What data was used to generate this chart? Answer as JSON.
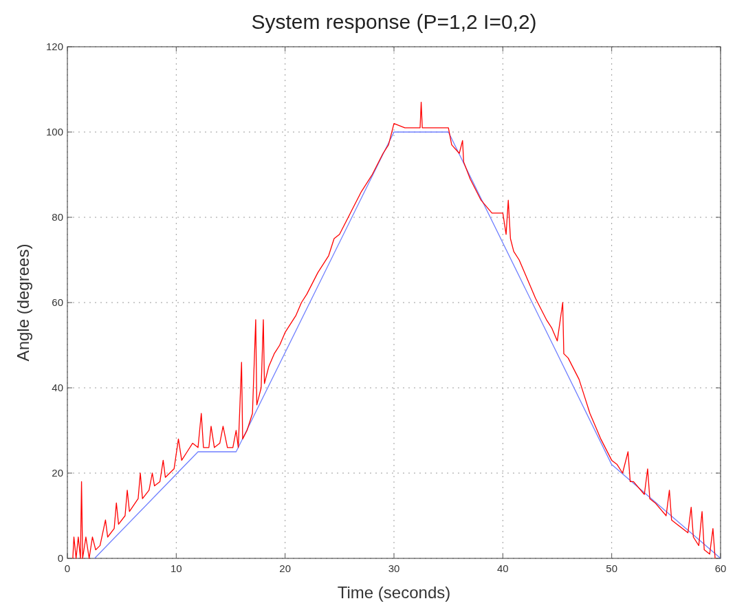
{
  "chart_data": {
    "type": "line",
    "title": "System response (P=1,2 I=0,2)",
    "xlabel": "Time (seconds)",
    "ylabel": "Angle (degrees)",
    "xlim": [
      0,
      60
    ],
    "ylim": [
      0,
      120
    ],
    "xticks": [
      0,
      10,
      20,
      30,
      40,
      50,
      60
    ],
    "yticks": [
      0,
      20,
      40,
      60,
      80,
      100,
      120
    ],
    "grid": true,
    "line_style": "solid",
    "series": [
      {
        "color": "#6f7fff",
        "x": [
          2.5,
          12,
          15.5,
          30,
          35,
          50,
          60
        ],
        "values": [
          0,
          25,
          25,
          100,
          100,
          22,
          0
        ]
      },
      {
        "color": "#ff0000",
        "x": [
          0.5,
          0.6,
          0.8,
          1.0,
          1.2,
          1.3,
          1.4,
          1.7,
          2.0,
          2.3,
          2.6,
          3.0,
          3.5,
          3.7,
          4.3,
          4.5,
          4.7,
          5.3,
          5.5,
          5.7,
          6.5,
          6.7,
          6.9,
          7.5,
          7.8,
          8.0,
          8.5,
          8.8,
          9.0,
          9.8,
          10.2,
          10.5,
          11.0,
          11.5,
          12.0,
          12.3,
          12.5,
          13.0,
          13.2,
          13.5,
          14.0,
          14.3,
          14.7,
          15.2,
          15.5,
          15.7,
          16.0,
          16.1,
          16.5,
          17.0,
          17.3,
          17.4,
          17.8,
          18.0,
          18.1,
          18.5,
          19.0,
          19.5,
          20.0,
          21,
          21.5,
          22,
          23,
          24,
          24.5,
          25,
          26,
          27,
          28,
          29,
          29.5,
          30,
          31,
          32,
          32.4,
          32.5,
          32.6,
          33,
          34,
          35,
          35.3,
          36,
          36.3,
          36.4,
          37,
          38,
          39,
          40,
          40.3,
          40.5,
          40.7,
          41,
          41.5,
          42,
          43,
          44,
          44.5,
          45,
          45.5,
          45.6,
          46,
          47,
          47.5,
          48,
          48.5,
          49,
          50,
          50.5,
          51,
          51.5,
          51.7,
          52,
          53,
          53.3,
          53.5,
          54,
          55,
          55.3,
          55.5,
          56,
          57,
          57.3,
          57.5,
          58,
          58.3,
          58.5,
          59,
          59.3,
          59.5
        ],
        "values": [
          0,
          5,
          0,
          5,
          0,
          18,
          0,
          5,
          0,
          5,
          2,
          3,
          9,
          5,
          7,
          13,
          8,
          10,
          16,
          11,
          14,
          20,
          14,
          16,
          20,
          17,
          18,
          23,
          19,
          21,
          28,
          23,
          25,
          27,
          26,
          34,
          26,
          26,
          31,
          26,
          27,
          31,
          26,
          26,
          30,
          26,
          46,
          28,
          30,
          34,
          56,
          36,
          40,
          56,
          41,
          45,
          48,
          50,
          53,
          57,
          60,
          62,
          67,
          71,
          75,
          76,
          81,
          86,
          90,
          95,
          97,
          102,
          101,
          101,
          101,
          107,
          101,
          101,
          101,
          101,
          97,
          95,
          98,
          93,
          89,
          84,
          81,
          81,
          76,
          84,
          75,
          72,
          70,
          67,
          61,
          56,
          54,
          51,
          60,
          48,
          47,
          42,
          38,
          34,
          31,
          28,
          23,
          22,
          20,
          25,
          18,
          18,
          15,
          21,
          14,
          13,
          10,
          16,
          9,
          8,
          6,
          12,
          5,
          3,
          11,
          2,
          1,
          7,
          0
        ]
      }
    ]
  }
}
